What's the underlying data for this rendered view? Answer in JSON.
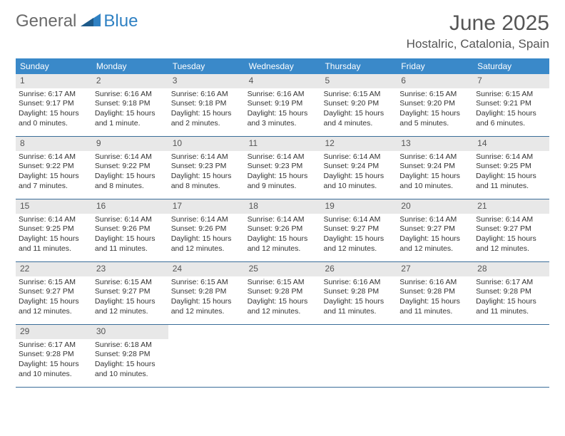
{
  "logo": {
    "general": "General",
    "blue": "Blue",
    "icon_color": "#2f81c3"
  },
  "title": "June 2025",
  "location": "Hostalric, Catalonia, Spain",
  "colors": {
    "header_bg": "#3a89c9",
    "header_text": "#ffffff",
    "day_num_bg": "#e8e8e8",
    "day_num_text": "#555555",
    "body_text": "#333333",
    "border": "#3a6d99",
    "title_text": "#555555"
  },
  "day_names": [
    "Sunday",
    "Monday",
    "Tuesday",
    "Wednesday",
    "Thursday",
    "Friday",
    "Saturday"
  ],
  "weeks": [
    [
      {
        "n": 1,
        "sr": "6:17 AM",
        "ss": "9:17 PM",
        "dl": "15 hours and 0 minutes."
      },
      {
        "n": 2,
        "sr": "6:16 AM",
        "ss": "9:18 PM",
        "dl": "15 hours and 1 minute."
      },
      {
        "n": 3,
        "sr": "6:16 AM",
        "ss": "9:18 PM",
        "dl": "15 hours and 2 minutes."
      },
      {
        "n": 4,
        "sr": "6:16 AM",
        "ss": "9:19 PM",
        "dl": "15 hours and 3 minutes."
      },
      {
        "n": 5,
        "sr": "6:15 AM",
        "ss": "9:20 PM",
        "dl": "15 hours and 4 minutes."
      },
      {
        "n": 6,
        "sr": "6:15 AM",
        "ss": "9:20 PM",
        "dl": "15 hours and 5 minutes."
      },
      {
        "n": 7,
        "sr": "6:15 AM",
        "ss": "9:21 PM",
        "dl": "15 hours and 6 minutes."
      }
    ],
    [
      {
        "n": 8,
        "sr": "6:14 AM",
        "ss": "9:22 PM",
        "dl": "15 hours and 7 minutes."
      },
      {
        "n": 9,
        "sr": "6:14 AM",
        "ss": "9:22 PM",
        "dl": "15 hours and 8 minutes."
      },
      {
        "n": 10,
        "sr": "6:14 AM",
        "ss": "9:23 PM",
        "dl": "15 hours and 8 minutes."
      },
      {
        "n": 11,
        "sr": "6:14 AM",
        "ss": "9:23 PM",
        "dl": "15 hours and 9 minutes."
      },
      {
        "n": 12,
        "sr": "6:14 AM",
        "ss": "9:24 PM",
        "dl": "15 hours and 10 minutes."
      },
      {
        "n": 13,
        "sr": "6:14 AM",
        "ss": "9:24 PM",
        "dl": "15 hours and 10 minutes."
      },
      {
        "n": 14,
        "sr": "6:14 AM",
        "ss": "9:25 PM",
        "dl": "15 hours and 11 minutes."
      }
    ],
    [
      {
        "n": 15,
        "sr": "6:14 AM",
        "ss": "9:25 PM",
        "dl": "15 hours and 11 minutes."
      },
      {
        "n": 16,
        "sr": "6:14 AM",
        "ss": "9:26 PM",
        "dl": "15 hours and 11 minutes."
      },
      {
        "n": 17,
        "sr": "6:14 AM",
        "ss": "9:26 PM",
        "dl": "15 hours and 12 minutes."
      },
      {
        "n": 18,
        "sr": "6:14 AM",
        "ss": "9:26 PM",
        "dl": "15 hours and 12 minutes."
      },
      {
        "n": 19,
        "sr": "6:14 AM",
        "ss": "9:27 PM",
        "dl": "15 hours and 12 minutes."
      },
      {
        "n": 20,
        "sr": "6:14 AM",
        "ss": "9:27 PM",
        "dl": "15 hours and 12 minutes."
      },
      {
        "n": 21,
        "sr": "6:14 AM",
        "ss": "9:27 PM",
        "dl": "15 hours and 12 minutes."
      }
    ],
    [
      {
        "n": 22,
        "sr": "6:15 AM",
        "ss": "9:27 PM",
        "dl": "15 hours and 12 minutes."
      },
      {
        "n": 23,
        "sr": "6:15 AM",
        "ss": "9:27 PM",
        "dl": "15 hours and 12 minutes."
      },
      {
        "n": 24,
        "sr": "6:15 AM",
        "ss": "9:28 PM",
        "dl": "15 hours and 12 minutes."
      },
      {
        "n": 25,
        "sr": "6:15 AM",
        "ss": "9:28 PM",
        "dl": "15 hours and 12 minutes."
      },
      {
        "n": 26,
        "sr": "6:16 AM",
        "ss": "9:28 PM",
        "dl": "15 hours and 11 minutes."
      },
      {
        "n": 27,
        "sr": "6:16 AM",
        "ss": "9:28 PM",
        "dl": "15 hours and 11 minutes."
      },
      {
        "n": 28,
        "sr": "6:17 AM",
        "ss": "9:28 PM",
        "dl": "15 hours and 11 minutes."
      }
    ],
    [
      {
        "n": 29,
        "sr": "6:17 AM",
        "ss": "9:28 PM",
        "dl": "15 hours and 10 minutes."
      },
      {
        "n": 30,
        "sr": "6:18 AM",
        "ss": "9:28 PM",
        "dl": "15 hours and 10 minutes."
      },
      null,
      null,
      null,
      null,
      null
    ]
  ],
  "labels": {
    "sunrise": "Sunrise:",
    "sunset": "Sunset:",
    "daylight": "Daylight:"
  }
}
